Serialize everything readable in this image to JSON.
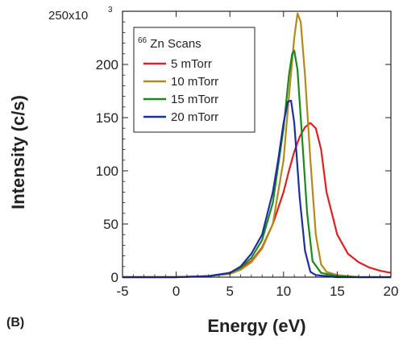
{
  "chart_data": {
    "type": "line",
    "panel_label": "(B)",
    "xlabel": "Energy (eV)",
    "ylabel": "Intensity (c/s)",
    "y_axis_multiplier": "x10",
    "y_axis_multiplier_exp": "3",
    "xlim": [
      -5,
      20
    ],
    "ylim": [
      0,
      250
    ],
    "x_ticks": [
      -5,
      0,
      5,
      10,
      15,
      20
    ],
    "x_tick_labels": [
      "-5",
      "0",
      "5",
      "10",
      "15",
      "20"
    ],
    "y_ticks": [
      0,
      50,
      100,
      150,
      200,
      250
    ],
    "y_tick_labels": [
      "0",
      "50",
      "100",
      "150",
      "200",
      "250"
    ],
    "legend": {
      "title_sup": "66",
      "title_main": "Zn Scans",
      "placement": "top-left"
    },
    "grid": false,
    "series": [
      {
        "name": "5 mTorr",
        "color": "#e02020",
        "x": [
          -5,
          0,
          3,
          5,
          6,
          7,
          8,
          9,
          10,
          10.5,
          11,
          11.5,
          12,
          12.5,
          13,
          13.5,
          14,
          15,
          16,
          17,
          18,
          19,
          20
        ],
        "y": [
          0,
          0,
          1,
          4,
          8,
          15,
          28,
          50,
          80,
          100,
          118,
          132,
          141,
          145,
          140,
          120,
          80,
          40,
          22,
          14,
          9,
          6,
          4
        ]
      },
      {
        "name": "10 mTorr",
        "color": "#b38a1a",
        "x": [
          -5,
          0,
          3,
          5,
          6,
          7,
          8,
          9,
          10,
          10.5,
          11,
          11.3,
          11.6,
          12,
          12.5,
          13,
          13.5,
          14,
          15,
          16,
          17,
          20
        ],
        "y": [
          0,
          0,
          1,
          3,
          7,
          14,
          27,
          50,
          110,
          170,
          225,
          248,
          240,
          190,
          110,
          40,
          12,
          5,
          2,
          1,
          0,
          0
        ]
      },
      {
        "name": "15 mTorr",
        "color": "#1a8a1a",
        "x": [
          -5,
          0,
          3,
          5,
          6,
          7,
          8,
          9,
          10,
          10.5,
          10.8,
          11,
          11.3,
          11.8,
          12.2,
          12.7,
          13.5,
          15,
          17,
          20
        ],
        "y": [
          0,
          0,
          1,
          4,
          9,
          18,
          35,
          70,
          140,
          190,
          210,
          213,
          195,
          120,
          60,
          15,
          4,
          1,
          0,
          0
        ]
      },
      {
        "name": "20 mTorr",
        "color": "#1c2fa0",
        "x": [
          -5,
          0,
          3,
          5,
          6,
          7,
          8,
          9,
          9.5,
          10,
          10.4,
          10.7,
          11,
          11.5,
          12,
          12.5,
          13,
          15,
          17,
          20
        ],
        "y": [
          0,
          0,
          1,
          4,
          10,
          22,
          40,
          80,
          110,
          145,
          165,
          166,
          145,
          75,
          25,
          5,
          2,
          0,
          0,
          0
        ]
      }
    ]
  }
}
